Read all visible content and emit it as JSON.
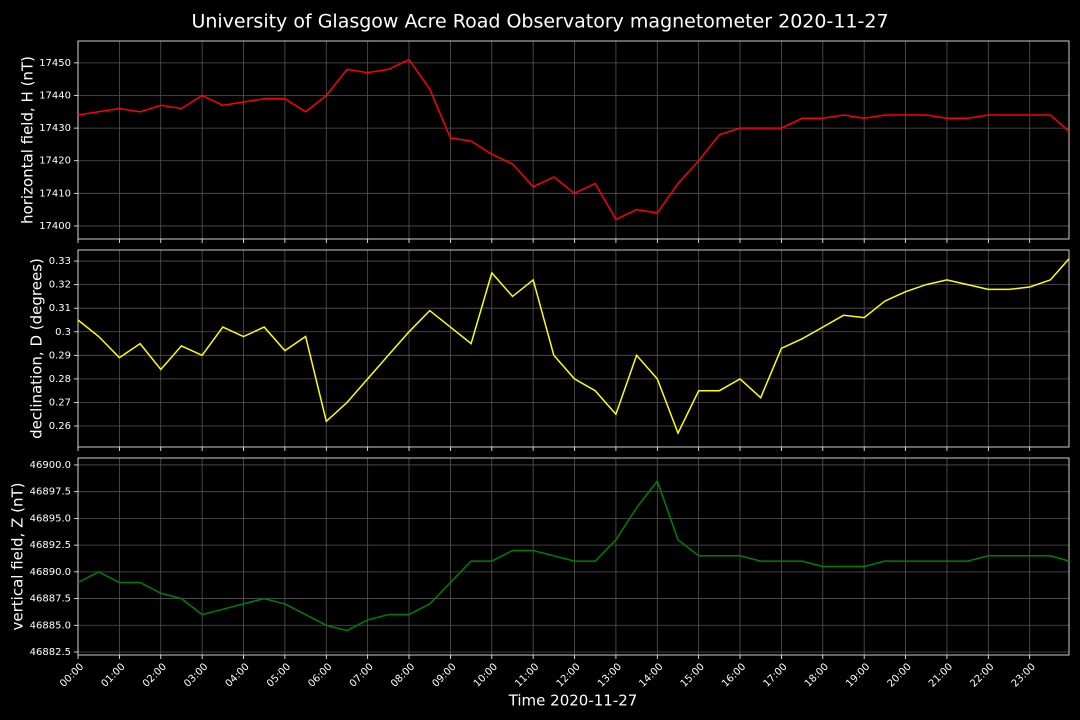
{
  "chart_data": [
    {
      "type": "line",
      "title": "University of Glasgow Acre Road Observatory magnetometer 2020-11-27",
      "y_label": "horizontal field, H (nT)",
      "color": "#ff0000",
      "grid": true,
      "x": [
        0,
        0.5,
        1,
        1.5,
        2,
        2.5,
        3,
        3.5,
        4,
        4.5,
        5,
        5.5,
        6,
        6.5,
        7,
        7.5,
        8,
        8.5,
        9,
        9.5,
        10,
        10.5,
        11,
        11.5,
        12,
        12.5,
        13,
        13.5,
        14,
        14.5,
        15,
        15.5,
        16,
        16.5,
        17,
        17.5,
        18,
        18.5,
        19,
        19.5,
        20,
        20.5,
        21,
        21.5,
        22,
        22.5,
        23,
        23.5,
        23.95
      ],
      "values": [
        17434,
        17435,
        17436,
        17435,
        17437,
        17436,
        17440,
        17437,
        17438,
        17439,
        17439,
        17435,
        17440,
        17448,
        17447,
        17448,
        17451,
        17442,
        17427,
        17426,
        17422,
        17419,
        17412,
        17415,
        17410,
        17413,
        17402,
        17405,
        17404,
        17413,
        17420,
        17428,
        17430,
        17430,
        17430,
        17433,
        17433,
        17434,
        17433,
        17434,
        17434,
        17434,
        17433,
        17433,
        17434,
        17434,
        17434,
        17434,
        17429
      ],
      "xlim": [
        0,
        23.95
      ],
      "ylim": [
        17396,
        17456.7
      ],
      "yticks": [
        17400,
        17410,
        17420,
        17430,
        17440,
        17450
      ]
    },
    {
      "type": "line",
      "y_label": "declination, D (degrees)",
      "color": "#ffff00",
      "grid": true,
      "x": [
        0,
        0.5,
        1,
        1.5,
        2,
        2.5,
        3,
        3.5,
        4,
        4.5,
        5,
        5.5,
        6,
        6.5,
        7,
        7.5,
        8,
        8.5,
        9,
        9.5,
        10,
        10.5,
        11,
        11.5,
        12,
        12.5,
        13,
        13.5,
        14,
        14.5,
        15,
        15.5,
        16,
        16.5,
        17,
        17.5,
        18,
        18.5,
        19,
        19.5,
        20,
        20.5,
        21,
        21.5,
        22,
        22.5,
        23,
        23.5,
        23.95
      ],
      "values": [
        0.305,
        0.298,
        0.289,
        0.295,
        0.284,
        0.294,
        0.29,
        0.302,
        0.298,
        0.302,
        0.292,
        0.298,
        0.262,
        0.27,
        0.28,
        0.29,
        0.3,
        0.309,
        0.302,
        0.295,
        0.325,
        0.315,
        0.322,
        0.29,
        0.28,
        0.275,
        0.265,
        0.29,
        0.28,
        0.257,
        0.275,
        0.275,
        0.28,
        0.272,
        0.293,
        0.297,
        0.302,
        0.307,
        0.306,
        0.313,
        0.317,
        0.32,
        0.322,
        0.32,
        0.318,
        0.318,
        0.319,
        0.322,
        0.331
      ],
      "xlim": [
        0,
        23.95
      ],
      "ylim": [
        0.2511,
        0.3347
      ],
      "yticks": [
        0.26,
        0.27,
        0.28,
        0.29,
        0.3,
        0.31,
        0.32,
        0.33
      ]
    },
    {
      "type": "line",
      "y_label": "vertical field, Z (nT)",
      "x_label": "Time 2020-11-27",
      "color": "#008000",
      "grid": true,
      "x": [
        0,
        0.5,
        1,
        1.5,
        2,
        2.5,
        3,
        3.5,
        4,
        4.5,
        5,
        5.5,
        6,
        6.5,
        7,
        7.5,
        8,
        8.5,
        9,
        9.5,
        10,
        10.5,
        11,
        11.5,
        12,
        12.5,
        13,
        13.5,
        14,
        14.5,
        15,
        15.5,
        16,
        16.5,
        17,
        17.5,
        18,
        18.5,
        19,
        19.5,
        20,
        20.5,
        21,
        21.5,
        22,
        22.5,
        23,
        23.5,
        23.95
      ],
      "values": [
        46889,
        46890,
        46889,
        46889,
        46888,
        46887.5,
        46886,
        46886.5,
        46887,
        46887.5,
        46887,
        46886,
        46885,
        46884.5,
        46885.5,
        46886,
        46886,
        46887,
        46889,
        46891,
        46891,
        46892,
        46892,
        46891.5,
        46891,
        46891,
        46893,
        46896,
        46898.5,
        46893,
        46891.5,
        46891.5,
        46891.5,
        46891,
        46891,
        46891,
        46890.5,
        46890.5,
        46890.5,
        46891,
        46891,
        46891,
        46891,
        46891,
        46891.5,
        46891.5,
        46891.5,
        46891.5,
        46891
      ],
      "xlim": [
        0,
        23.95
      ],
      "ylim": [
        46882.22,
        46900.65
      ],
      "yticks": [
        {
          "value": 46882.5,
          "label": "46882.5"
        },
        {
          "value": 46885,
          "label": "46885.0"
        },
        {
          "value": 46887.5,
          "label": "46887.5"
        },
        {
          "value": 46890,
          "label": "46890.0"
        },
        {
          "value": 46892.5,
          "label": "46892.5"
        },
        {
          "value": 46895,
          "label": "46895.0"
        },
        {
          "value": 46897.5,
          "label": "46897.5"
        },
        {
          "value": 46900,
          "label": "46900.0"
        }
      ],
      "xticks": [
        {
          "value": 0,
          "label": "00:00"
        },
        {
          "value": 1,
          "label": "01:00"
        },
        {
          "value": 2,
          "label": "02:00"
        },
        {
          "value": 3,
          "label": "03:00"
        },
        {
          "value": 4,
          "label": "04:00"
        },
        {
          "value": 5,
          "label": "05:00"
        },
        {
          "value": 6,
          "label": "06:00"
        },
        {
          "value": 7,
          "label": "07:00"
        },
        {
          "value": 8,
          "label": "08:00"
        },
        {
          "value": 9,
          "label": "09:00"
        },
        {
          "value": 10,
          "label": "10:00"
        },
        {
          "value": 11,
          "label": "11:00"
        },
        {
          "value": 12,
          "label": "12:00"
        },
        {
          "value": 13,
          "label": "13:00"
        },
        {
          "value": 14,
          "label": "14:00"
        },
        {
          "value": 15,
          "label": "15:00"
        },
        {
          "value": 16,
          "label": "16:00"
        },
        {
          "value": 17,
          "label": "17:00"
        },
        {
          "value": 18,
          "label": "18:00"
        },
        {
          "value": 19,
          "label": "19:00"
        },
        {
          "value": 20,
          "label": "20:00"
        },
        {
          "value": 21,
          "label": "21:00"
        },
        {
          "value": 22,
          "label": "22:00"
        },
        {
          "value": 23,
          "label": "23:00"
        }
      ]
    }
  ]
}
